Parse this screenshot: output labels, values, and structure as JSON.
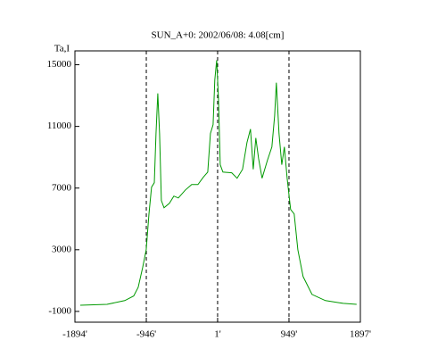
{
  "chart_data": {
    "type": "line",
    "title": "SUN_A+0: 2002/06/08: 4.08[cm]",
    "y_label": "Ta,I",
    "xlim": [
      -1894,
      1897
    ],
    "ylim": [
      -1700,
      15900
    ],
    "xticks": [
      {
        "value": -1894,
        "label": "-1894'"
      },
      {
        "value": -946,
        "label": "-946'"
      },
      {
        "value": 1,
        "label": "1'"
      },
      {
        "value": 949,
        "label": "949'"
      },
      {
        "value": 1897,
        "label": "1897'"
      }
    ],
    "yticks": [
      15000,
      11000,
      7000,
      3000,
      -1000
    ],
    "grid_x": true,
    "series": [
      {
        "color": "#009900",
        "x": [
          -1823,
          -1468,
          -1232,
          -1113,
          -1054,
          -995,
          -947,
          -911,
          -876,
          -840,
          -817,
          -793,
          -770,
          -746,
          -710,
          -639,
          -580,
          -521,
          -426,
          -343,
          -260,
          -189,
          -130,
          -95,
          -59,
          -36,
          -12,
          12,
          36,
          71,
          189,
          260,
          332,
          391,
          438,
          474,
          509,
          545,
          592,
          663,
          722,
          758,
          781,
          817,
          853,
          888,
          924,
          971,
          1018,
          1066,
          1137,
          1255,
          1433,
          1670,
          1847
        ],
        "values": [
          -600,
          -540,
          -300,
          0,
          560,
          1840,
          3000,
          5320,
          7060,
          7350,
          10540,
          13140,
          10540,
          6190,
          5720,
          6010,
          6480,
          6360,
          6880,
          7230,
          7230,
          7700,
          8040,
          10540,
          11110,
          14010,
          15290,
          12850,
          8510,
          8040,
          7990,
          7640,
          8220,
          9960,
          10830,
          8220,
          10250,
          8910,
          7640,
          8800,
          9670,
          11700,
          13840,
          10540,
          8510,
          9670,
          7640,
          5610,
          5320,
          3000,
          1260,
          100,
          -300,
          -480,
          -540
        ]
      }
    ]
  }
}
